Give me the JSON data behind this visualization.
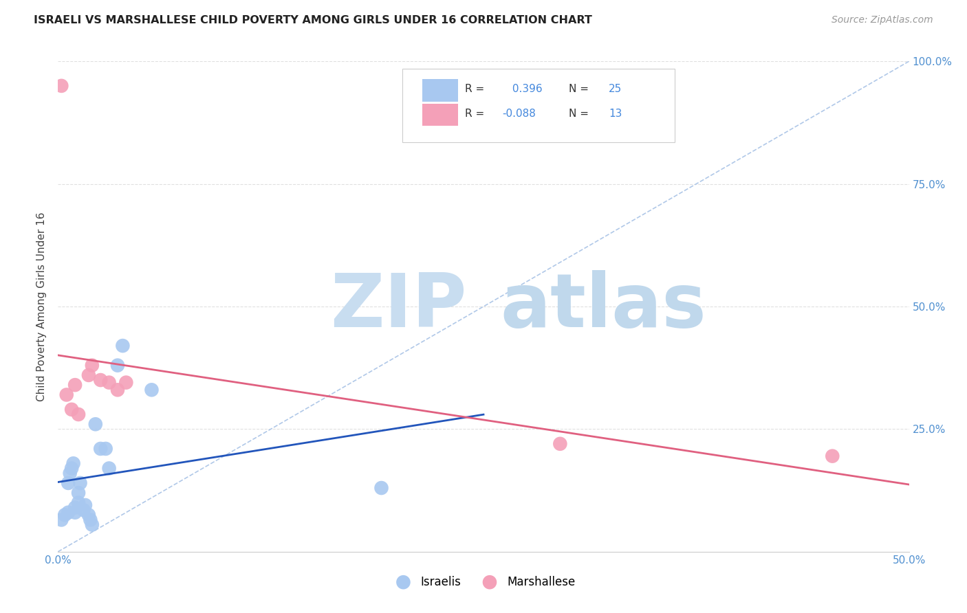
{
  "title": "ISRAELI VS MARSHALLESE CHILD POVERTY AMONG GIRLS UNDER 16 CORRELATION CHART",
  "source": "Source: ZipAtlas.com",
  "ylabel": "Child Poverty Among Girls Under 16",
  "xlim": [
    0,
    0.5
  ],
  "ylim": [
    0,
    1.0
  ],
  "xticks": [
    0,
    0.1,
    0.2,
    0.3,
    0.4,
    0.5
  ],
  "yticks": [
    0,
    0.25,
    0.5,
    0.75,
    1.0
  ],
  "israeli_R": 0.396,
  "israeli_N": 25,
  "marshallese_R": -0.088,
  "marshallese_N": 13,
  "israeli_color": "#a8c8f0",
  "marshallese_color": "#f4a0b8",
  "israeli_line_color": "#2255bb",
  "marshallese_line_color": "#e06080",
  "diagonal_color": "#b0c8e8",
  "watermark_zip": "ZIP",
  "watermark_atlas": "atlas",
  "watermark_color_zip": "#c8ddf0",
  "watermark_color_atlas": "#c0d8ec",
  "israeli_x": [
    0.002,
    0.004,
    0.006,
    0.006,
    0.007,
    0.008,
    0.009,
    0.01,
    0.01,
    0.012,
    0.012,
    0.013,
    0.015,
    0.016,
    0.018,
    0.019,
    0.02,
    0.022,
    0.025,
    0.028,
    0.03,
    0.035,
    0.038,
    0.055,
    0.19
  ],
  "israeli_y": [
    0.065,
    0.075,
    0.08,
    0.14,
    0.16,
    0.17,
    0.18,
    0.08,
    0.09,
    0.1,
    0.12,
    0.14,
    0.085,
    0.095,
    0.075,
    0.065,
    0.055,
    0.26,
    0.21,
    0.21,
    0.17,
    0.38,
    0.42,
    0.33,
    0.13
  ],
  "marshallese_x": [
    0.002,
    0.005,
    0.008,
    0.01,
    0.012,
    0.018,
    0.02,
    0.025,
    0.03,
    0.035,
    0.04,
    0.295,
    0.455
  ],
  "marshallese_y": [
    0.95,
    0.32,
    0.29,
    0.34,
    0.28,
    0.36,
    0.38,
    0.35,
    0.345,
    0.33,
    0.345,
    0.22,
    0.195
  ],
  "marker_size": 220,
  "background_color": "#ffffff",
  "grid_color": "#e0e0e0"
}
